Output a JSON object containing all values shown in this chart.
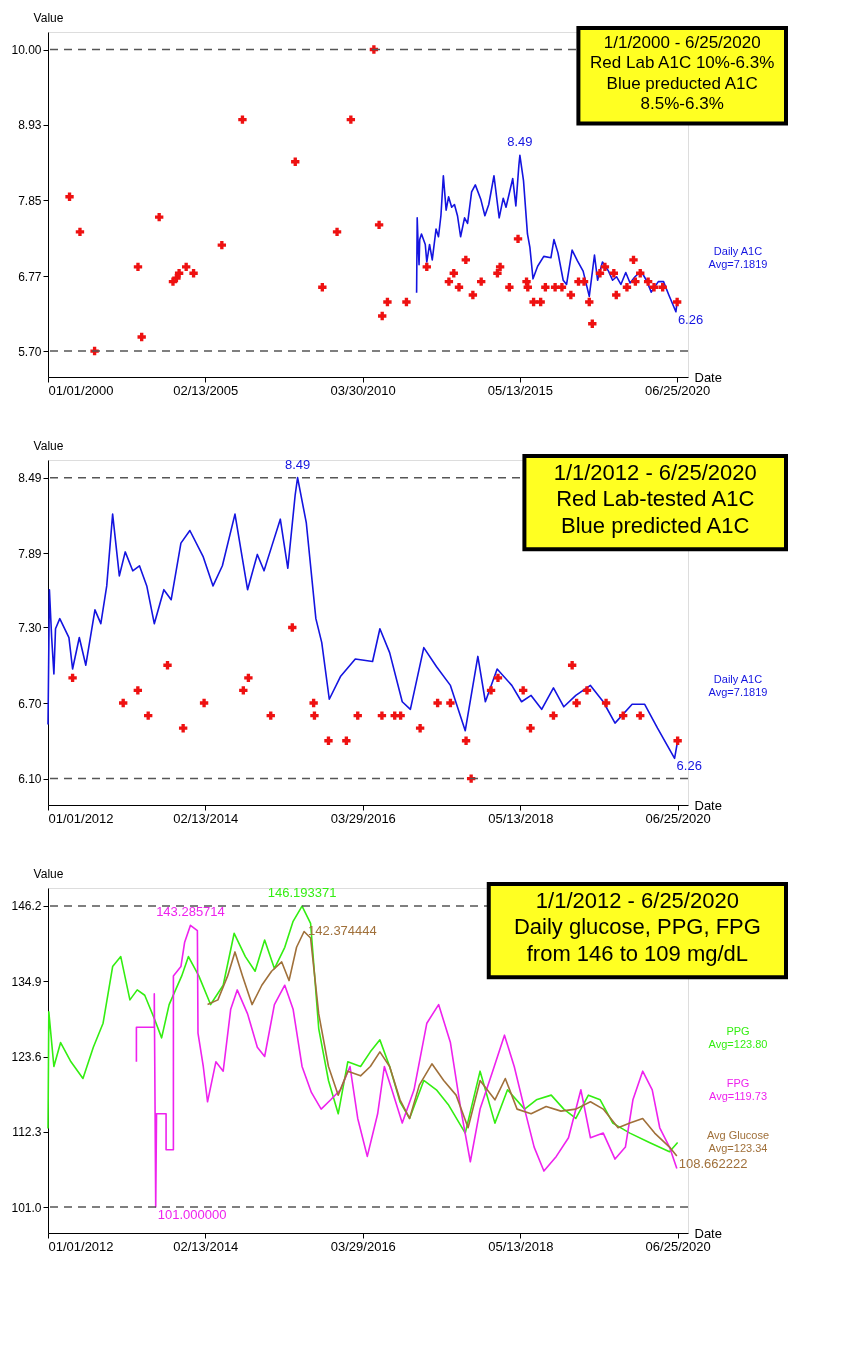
{
  "chart_data": [
    {
      "type": "line",
      "title": "1/1/2000 - 6/25/2020\nRed Lab A1C 10%-6.3%\nBlue preducted A1C\n8.5%-6.3%",
      "xlabel": "Date",
      "ylabel": "Value",
      "grid": false,
      "xlim": [
        "2000-01-01",
        "2020-11-01"
      ],
      "xticks": [
        {
          "value": "2000-01-01",
          "label": "01/01/2000"
        },
        {
          "value": "2005-02-13",
          "label": "02/13/2005"
        },
        {
          "value": "2010-03-30",
          "label": "03/30/2010"
        },
        {
          "value": "2015-05-13",
          "label": "05/13/2015"
        },
        {
          "value": "2020-06-25",
          "label": "06/25/2020"
        }
      ],
      "ylim": [
        5.33,
        10.25
      ],
      "yticks": [
        {
          "value": 5.7,
          "label": "5.70"
        },
        6.77,
        7.85,
        8.93,
        {
          "value": 10,
          "label": "10.00"
        }
      ],
      "ref_lines": [
        {
          "axis": "y",
          "value": 10,
          "color": "#555555",
          "line_style": "dashed"
        },
        {
          "axis": "y",
          "value": 5.7,
          "color": "#555555",
          "line_style": "dashed"
        }
      ],
      "annotations": [
        {
          "text": "8.49",
          "x": "2015-05-13",
          "y": 8.49
        },
        {
          "text": "6.26",
          "x": "2020-06-10",
          "y": 6.26
        }
      ],
      "series": [
        {
          "name": "Daily A1C\nAvg=7.1819",
          "color": "#1414e0",
          "x": [
            "2012-01-01",
            "2012-01-08",
            "2012-01-19",
            "2012-01-30",
            "2012-02-07",
            "2012-02-28",
            "2012-04-13",
            "2012-05-01",
            "2012-06-03",
            "2012-07-05",
            "2012-08-19",
            "2012-09-17",
            "2012-10-16",
            "2012-11-14",
            "2012-12-17",
            "2013-01-15",
            "2013-02-21",
            "2013-03-26",
            "2013-05-01",
            "2013-06-07",
            "2013-07-24",
            "2013-08-29",
            "2013-10-16",
            "2013-11-29",
            "2014-02-03",
            "2014-03-23",
            "2014-05-08",
            "2014-07-09",
            "2014-09-09",
            "2014-10-27",
            "2014-11-29",
            "2015-01-05",
            "2015-02-17",
            "2015-03-26",
            "2015-05-01",
            "2015-05-13",
            "2015-06-25",
            "2015-08-11",
            "2015-09-09",
            "2015-10-16",
            "2015-12-10",
            "2016-02-21",
            "2016-05-16",
            "2016-06-21",
            "2016-08-08",
            "2016-10-09",
            "2016-11-18",
            "2017-01-23",
            "2017-03-26",
            "2017-06-03",
            "2017-08-15",
            "2017-10-16",
            "2017-11-22",
            "2018-01-19",
            "2018-04-01",
            "2018-05-19",
            "2018-07-05",
            "2018-08-26",
            "2018-10-23",
            "2018-12-13",
            "2019-02-10",
            "2019-04-23",
            "2019-06-25",
            "2019-08-22",
            "2019-11-14",
            "2020-01-15",
            "2020-03-18",
            "2020-06-10",
            "2020-06-25"
          ],
          "values": [
            6.53,
            7.6,
            7.22,
            6.93,
            7.29,
            7.37,
            7.22,
            6.97,
            7.22,
            7.0,
            7.44,
            7.33,
            7.63,
            8.2,
            7.71,
            7.9,
            7.75,
            7.79,
            7.63,
            7.33,
            7.6,
            7.52,
            7.97,
            8.07,
            7.86,
            7.63,
            7.79,
            8.2,
            7.6,
            7.88,
            7.75,
            7.94,
            8.16,
            7.77,
            8.35,
            8.49,
            8.13,
            7.37,
            7.18,
            6.73,
            6.91,
            7.05,
            7.03,
            7.29,
            7.1,
            6.71,
            6.65,
            7.14,
            6.99,
            6.84,
            6.48,
            7.07,
            6.71,
            6.97,
            6.84,
            6.71,
            6.76,
            6.65,
            6.82,
            6.67,
            6.76,
            6.84,
            6.71,
            6.54,
            6.69,
            6.69,
            6.5,
            6.26,
            6.4
          ]
        },
        {
          "type": "scatter",
          "marker": "cross",
          "color": "#ee1111",
          "x": [
            "2000-09-13",
            "2001-01-15",
            "2001-07-08",
            "2002-12-06",
            "2003-01-19",
            "2003-08-15",
            "2004-01-26",
            "2004-03-07",
            "2004-04-08",
            "2004-07-01",
            "2004-09-27",
            "2005-08-29",
            "2006-05-01",
            "2008-01-19",
            "2008-12-06",
            "2009-05-30",
            "2009-11-10",
            "2010-08-11",
            "2010-10-12",
            "2010-11-18",
            "2011-01-19",
            "2011-09-02",
            "2012-05-01",
            "2013-01-19",
            "2013-03-18",
            "2013-05-19",
            "2013-08-08",
            "2013-10-31",
            "2014-02-07",
            "2014-08-19",
            "2014-09-20",
            "2015-01-08",
            "2015-04-21",
            "2015-07-31",
            "2015-08-15",
            "2015-10-23",
            "2016-01-15",
            "2016-03-11",
            "2016-07-05",
            "2016-09-24",
            "2017-01-08",
            "2017-04-09",
            "2017-06-14",
            "2017-08-15",
            "2017-09-20",
            "2017-12-20",
            "2018-02-17",
            "2018-06-03",
            "2018-07-02",
            "2018-11-06",
            "2019-01-23",
            "2019-02-14",
            "2019-04-13",
            "2019-07-16",
            "2019-09-24",
            "2020-01-05",
            "2020-06-25"
          ],
          "values": [
            7.9,
            7.4,
            5.7,
            6.9,
            5.9,
            7.61,
            6.69,
            6.74,
            6.81,
            6.9,
            6.81,
            7.21,
            9.0,
            8.4,
            6.61,
            7.4,
            9.0,
            10.0,
            7.5,
            6.2,
            6.4,
            6.4,
            6.9,
            6.69,
            6.81,
            6.61,
            7.0,
            6.5,
            6.69,
            6.81,
            6.9,
            6.61,
            7.3,
            6.69,
            6.61,
            6.4,
            6.4,
            6.61,
            6.61,
            6.61,
            6.5,
            6.69,
            6.69,
            6.4,
            6.09,
            6.81,
            6.9,
            6.81,
            6.5,
            6.61,
            7.0,
            6.69,
            6.81,
            6.69,
            6.61,
            6.61,
            6.4
          ]
        }
      ]
    },
    {
      "type": "line",
      "title": "1/1/2012 - 6/25/2020\nRed Lab-tested A1C\nBlue predicted A1C",
      "xlabel": "Date",
      "ylabel": "Value",
      "grid": false,
      "xlim": [
        "2012-01-01",
        "2020-08-15"
      ],
      "xticks": [
        {
          "value": "2012-01-01",
          "label": "01/01/2012"
        },
        {
          "value": "2014-02-13",
          "label": "02/13/2014"
        },
        {
          "value": "2016-03-29",
          "label": "03/29/2016"
        },
        {
          "value": "2018-05-13",
          "label": "05/13/2018"
        },
        {
          "value": "2020-06-25",
          "label": "06/25/2020"
        }
      ],
      "ylim": [
        5.89,
        8.63
      ],
      "yticks": [
        {
          "value": 6.1,
          "label": "6.10"
        },
        {
          "value": 6.7,
          "label": "6.70"
        },
        {
          "value": 7.3,
          "label": "7.30"
        },
        7.89,
        8.49
      ],
      "ref_lines": [
        {
          "axis": "y",
          "value": 8.49,
          "color": "#555555",
          "line_style": "dashed"
        },
        {
          "axis": "y",
          "value": 6.1,
          "color": "#555555",
          "line_style": "dashed"
        }
      ],
      "annotations": [
        {
          "text": "8.49",
          "x": "2015-05-13",
          "y": 8.49
        },
        {
          "text": "6.26",
          "x": "2020-06-10",
          "y": 6.26
        }
      ],
      "series": [
        {
          "name": "Daily A1C\nAvg=7.1819",
          "color": "#1414e0",
          "x": [
            "2012-01-01",
            "2012-01-08",
            "2012-01-19",
            "2012-01-30",
            "2012-02-07",
            "2012-02-28",
            "2012-04-13",
            "2012-05-01",
            "2012-06-03",
            "2012-07-05",
            "2012-08-19",
            "2012-09-17",
            "2012-10-16",
            "2012-11-14",
            "2012-12-17",
            "2013-01-15",
            "2013-02-21",
            "2013-03-26",
            "2013-05-01",
            "2013-06-07",
            "2013-07-24",
            "2013-08-29",
            "2013-10-16",
            "2013-11-29",
            "2014-02-03",
            "2014-03-23",
            "2014-05-08",
            "2014-07-09",
            "2014-09-09",
            "2014-10-27",
            "2014-11-29",
            "2015-01-05",
            "2015-02-17",
            "2015-03-26",
            "2015-05-01",
            "2015-05-13",
            "2015-06-25",
            "2015-08-11",
            "2015-09-09",
            "2015-10-16",
            "2015-12-10",
            "2016-02-21",
            "2016-05-16",
            "2016-06-21",
            "2016-08-08",
            "2016-10-09",
            "2016-11-18",
            "2017-01-23",
            "2017-03-26",
            "2017-06-03",
            "2017-08-15",
            "2017-10-16",
            "2017-11-22",
            "2018-01-19",
            "2018-04-01",
            "2018-05-19",
            "2018-07-05",
            "2018-08-26",
            "2018-10-23",
            "2018-12-13",
            "2019-02-10",
            "2019-04-23",
            "2019-06-25",
            "2019-08-22",
            "2019-11-14",
            "2020-01-15",
            "2020-03-18",
            "2020-06-10",
            "2020-06-25"
          ],
          "values": [
            6.53,
            7.6,
            7.22,
            6.93,
            7.29,
            7.37,
            7.22,
            6.97,
            7.22,
            7.0,
            7.44,
            7.33,
            7.63,
            8.2,
            7.71,
            7.9,
            7.75,
            7.79,
            7.63,
            7.33,
            7.6,
            7.52,
            7.97,
            8.07,
            7.86,
            7.63,
            7.79,
            8.2,
            7.6,
            7.88,
            7.75,
            7.94,
            8.16,
            7.77,
            8.35,
            8.49,
            8.13,
            7.37,
            7.18,
            6.73,
            6.91,
            7.05,
            7.03,
            7.29,
            7.1,
            6.71,
            6.65,
            7.14,
            6.99,
            6.84,
            6.48,
            7.07,
            6.71,
            6.97,
            6.84,
            6.71,
            6.76,
            6.65,
            6.82,
            6.67,
            6.76,
            6.84,
            6.71,
            6.54,
            6.69,
            6.69,
            6.5,
            6.26,
            6.4
          ]
        },
        {
          "type": "scatter",
          "marker": "cross",
          "color": "#ee1111",
          "x": [
            "2012-05-01",
            "2013-01-05",
            "2013-03-18",
            "2013-05-08",
            "2013-08-11",
            "2013-10-27",
            "2014-02-07",
            "2014-08-19",
            "2014-09-13",
            "2015-01-01",
            "2015-04-17",
            "2015-07-31",
            "2015-08-04",
            "2015-10-12",
            "2016-01-08",
            "2016-03-04",
            "2016-07-01",
            "2016-09-02",
            "2016-10-01",
            "2017-01-05",
            "2017-04-01",
            "2017-06-03",
            "2017-08-19",
            "2017-09-13",
            "2017-12-20",
            "2018-01-23",
            "2018-05-27",
            "2018-07-02",
            "2018-10-23",
            "2019-01-23",
            "2019-02-14",
            "2019-04-06",
            "2019-07-09",
            "2019-10-01",
            "2019-12-24",
            "2020-06-25"
          ],
          "values": [
            6.9,
            6.7,
            6.8,
            6.6,
            7.0,
            6.5,
            6.7,
            6.8,
            6.9,
            6.6,
            7.3,
            6.7,
            6.6,
            6.4,
            6.4,
            6.6,
            6.6,
            6.6,
            6.6,
            6.5,
            6.7,
            6.7,
            6.4,
            6.1,
            6.8,
            6.9,
            6.8,
            6.5,
            6.6,
            7.0,
            6.7,
            6.8,
            6.7,
            6.6,
            6.6,
            6.4
          ]
        }
      ]
    },
    {
      "type": "line",
      "title": "1/1/2012 - 6/25/2020\nDaily glucose, PPG, FPG\nfrom 146 to 109 mg/dL",
      "xlabel": "Date",
      "ylabel": "Value",
      "grid": false,
      "xlim": [
        "2012-01-01",
        "2020-08-15"
      ],
      "xticks": [
        {
          "value": "2012-01-01",
          "label": "01/01/2012"
        },
        {
          "value": "2014-02-13",
          "label": "02/13/2014"
        },
        {
          "value": "2016-03-29",
          "label": "03/29/2016"
        },
        {
          "value": "2018-05-13",
          "label": "05/13/2018"
        },
        {
          "value": "2020-06-25",
          "label": "06/25/2020"
        }
      ],
      "ylim": [
        97.1,
        148.9
      ],
      "yticks": [
        {
          "value": 101,
          "label": "101.0"
        },
        112.3,
        123.6,
        134.9,
        146.2
      ],
      "ref_lines": [
        {
          "axis": "y",
          "value": 146.2,
          "color": "#555555",
          "line_style": "dashed"
        },
        {
          "axis": "y",
          "value": 101,
          "color": "#555555",
          "line_style": "dashed"
        }
      ],
      "annotations": [
        {
          "text": "146.193371",
          "x": "2015-06-04",
          "y": 146.19
        },
        {
          "text": "143.285714",
          "x": "2013-12-02",
          "y": 143.29
        },
        {
          "text": "142.374444",
          "x": "2015-06-14",
          "y": 142.37
        },
        {
          "text": "101.000000",
          "x": "2013-06-14",
          "y": 101.0
        },
        {
          "text": "108.662222",
          "x": "2020-06-21",
          "y": 108.66
        }
      ],
      "series": [
        {
          "name": "PPG\nAvg=123.80",
          "color": "#33ee11",
          "x": [
            "2012-01-01",
            "2012-01-05",
            "2012-01-30",
            "2012-03-03",
            "2012-04-23",
            "2012-06-21",
            "2012-08-11",
            "2012-09-28",
            "2012-11-14",
            "2012-12-24",
            "2013-02-07",
            "2013-03-15",
            "2013-04-21",
            "2013-06-07",
            "2013-07-13",
            "2013-08-19",
            "2013-10-20",
            "2013-11-22",
            "2014-01-12",
            "2014-03-11",
            "2014-05-12",
            "2014-07-05",
            "2014-08-29",
            "2014-10-16",
            "2014-12-02",
            "2015-01-19",
            "2015-03-11",
            "2015-04-21",
            "2015-06-04",
            "2015-07-16",
            "2015-08-25",
            "2015-10-12",
            "2015-11-29",
            "2016-01-15",
            "2016-03-18",
            "2016-05-05",
            "2016-06-21",
            "2016-08-08",
            "2016-09-28",
            "2016-11-14",
            "2017-01-23",
            "2017-03-26",
            "2017-05-23",
            "2017-08-15",
            "2017-10-27",
            "2018-01-08",
            "2018-03-11",
            "2018-06-03",
            "2018-07-31",
            "2018-10-12",
            "2018-12-13",
            "2019-02-10",
            "2019-04-13",
            "2019-06-10",
            "2019-08-11",
            "2019-11-03",
            "2020-02-07",
            "2020-05-16",
            "2020-06-25"
          ],
          "values": [
            112.8,
            130.3,
            122.1,
            125.7,
            122.8,
            120.3,
            125.0,
            128.6,
            137.1,
            138.6,
            132.1,
            133.6,
            132.8,
            129.3,
            126.4,
            131.4,
            135.7,
            138.6,
            135.7,
            131.4,
            134.3,
            142.1,
            138.6,
            136.4,
            141.1,
            136.8,
            140.0,
            143.9,
            146.19,
            143.6,
            127.8,
            120.0,
            115.0,
            122.8,
            122.1,
            124.3,
            126.1,
            122.1,
            116.8,
            114.3,
            120.0,
            118.6,
            116.4,
            112.1,
            121.4,
            113.6,
            118.6,
            115.7,
            117.1,
            117.8,
            115.7,
            114.3,
            117.8,
            117.1,
            113.6,
            112.1,
            110.7,
            109.3,
            110.7
          ]
        },
        {
          "name": "FPG\nAvg=119.73",
          "color": "#ee22ee",
          "x": [
            "2013-03-11",
            "2013-03-11",
            "2013-06-07",
            "2013-06-07",
            "2013-06-14",
            "2013-06-18",
            "2013-08-04",
            "2013-08-04",
            "2013-09-09",
            "2013-09-09",
            "2013-10-16",
            "2013-11-03",
            "2013-12-02",
            "2014-01-05",
            "2014-01-08",
            "2014-02-03",
            "2014-02-24",
            "2014-04-06",
            "2014-05-12",
            "2014-06-18",
            "2014-07-20",
            "2014-09-09",
            "2014-10-27",
            "2014-12-02",
            "2015-01-19",
            "2015-03-11",
            "2015-04-21",
            "2015-06-04",
            "2015-07-20",
            "2015-09-06",
            "2015-10-23",
            "2015-12-10",
            "2016-01-26",
            "2016-03-04",
            "2016-04-20",
            "2016-06-10",
            "2016-07-13",
            "2016-08-19",
            "2016-10-09",
            "2016-12-06",
            "2017-02-07",
            "2017-04-06",
            "2017-06-03",
            "2017-07-24",
            "2017-09-09",
            "2017-10-27",
            "2017-12-28",
            "2018-02-24",
            "2018-04-13",
            "2018-06-03",
            "2018-07-20",
            "2018-09-06",
            "2018-11-06",
            "2019-01-05",
            "2019-03-07",
            "2019-04-23",
            "2019-06-25",
            "2019-08-22",
            "2019-10-12",
            "2019-11-18",
            "2020-01-05",
            "2020-02-21",
            "2020-03-29",
            "2020-05-16",
            "2020-06-21"
          ],
          "values": [
            122.8,
            128.0,
            128.0,
            133.0,
            101.0,
            115.0,
            115.0,
            109.6,
            109.6,
            135.7,
            137.1,
            140.7,
            143.29,
            142.5,
            127.1,
            122.1,
            116.8,
            122.8,
            121.4,
            130.7,
            133.6,
            130.0,
            125.0,
            123.6,
            131.4,
            134.3,
            130.7,
            122.1,
            118.2,
            115.7,
            117.1,
            118.6,
            122.1,
            114.3,
            108.6,
            115.0,
            122.1,
            118.6,
            113.6,
            118.6,
            128.6,
            131.4,
            125.7,
            115.7,
            107.8,
            115.7,
            121.4,
            126.8,
            122.1,
            115.7,
            110.0,
            106.4,
            108.6,
            111.4,
            118.6,
            111.4,
            112.1,
            108.2,
            110.0,
            117.1,
            121.4,
            118.6,
            112.9,
            110.0,
            106.8
          ]
        },
        {
          "name": "Avg Glucose\nAvg=123.34",
          "color": "#a0703a",
          "x": [
            "2014-02-24",
            "2014-04-16",
            "2014-06-03",
            "2014-07-09",
            "2014-08-15",
            "2014-10-01",
            "2014-11-18",
            "2015-01-05",
            "2015-02-24",
            "2015-04-01",
            "2015-05-08",
            "2015-06-14",
            "2015-07-16",
            "2015-08-25",
            "2015-10-12",
            "2015-11-29",
            "2016-01-15",
            "2016-03-18",
            "2016-05-05",
            "2016-06-21",
            "2016-08-08",
            "2016-09-28",
            "2016-11-14",
            "2017-01-01",
            "2017-03-04",
            "2017-05-01",
            "2017-07-01",
            "2017-08-29",
            "2017-10-27",
            "2018-01-08",
            "2018-02-28",
            "2018-04-27",
            "2018-07-05",
            "2018-09-17",
            "2018-11-29",
            "2019-02-10",
            "2019-04-23",
            "2019-06-25",
            "2019-09-06",
            "2019-11-03",
            "2020-01-05",
            "2020-03-04",
            "2020-05-16",
            "2020-06-21"
          ],
          "values": [
            131.4,
            132.1,
            135.7,
            139.3,
            135.7,
            131.4,
            134.3,
            136.4,
            137.8,
            135.0,
            140.0,
            142.37,
            141.4,
            130.0,
            122.1,
            117.8,
            121.4,
            120.7,
            122.1,
            124.3,
            122.1,
            117.1,
            114.3,
            119.3,
            122.5,
            120.0,
            117.8,
            112.9,
            120.0,
            117.1,
            120.3,
            115.7,
            115.0,
            116.1,
            115.4,
            115.7,
            116.8,
            115.7,
            112.9,
            113.6,
            114.3,
            112.1,
            110.0,
            108.66
          ]
        }
      ]
    }
  ]
}
